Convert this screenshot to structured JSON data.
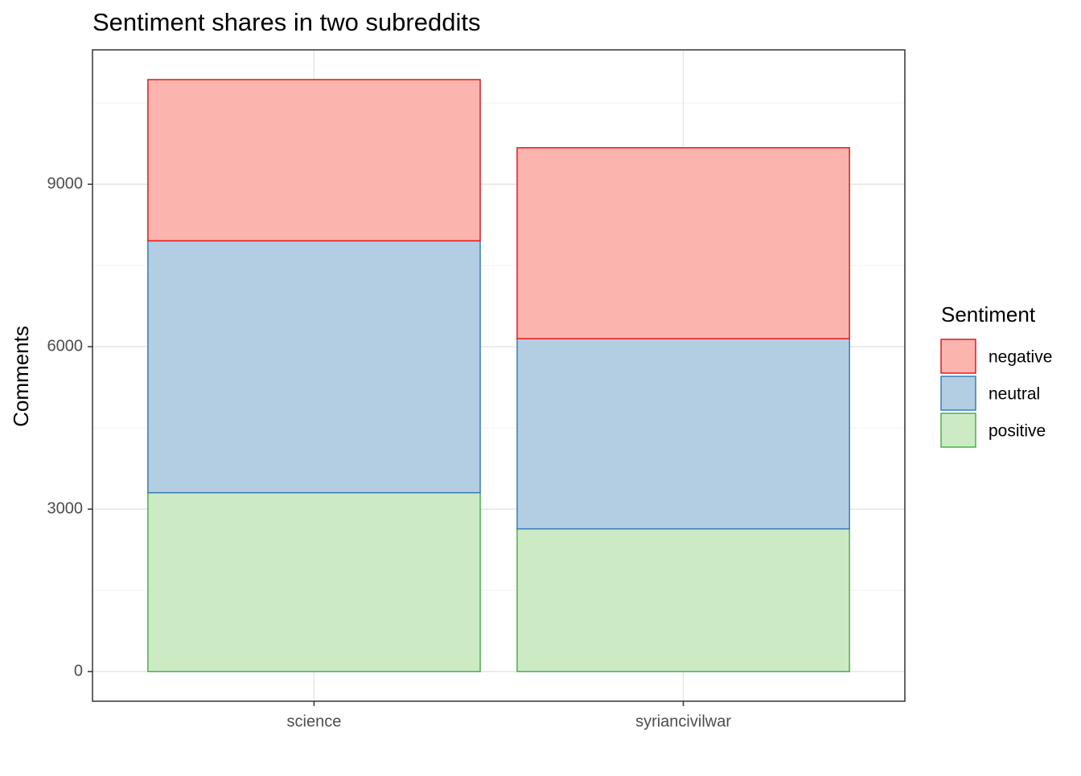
{
  "chart_data": {
    "type": "stacked_bar",
    "title": "Sentiment shares in two subreddits",
    "y_label": "Comments",
    "legend_title": "Sentiment",
    "categories": [
      "science",
      "syriancivilwar"
    ],
    "series": [
      {
        "name": "negative",
        "color": "#FBB4AE",
        "stroke": "#E41A1C",
        "values": [
          2977,
          3526
        ]
      },
      {
        "name": "neutral",
        "color": "#B3CDE3",
        "stroke": "#377EB8",
        "values": [
          4652,
          3511
        ]
      },
      {
        "name": "positive",
        "color": "#CCEBC5",
        "stroke": "#4DAF4A",
        "values": [
          3304,
          2637
        ]
      }
    ],
    "ylim": [
      -547,
      11482
    ],
    "yticks": [
      0,
      3000,
      6000,
      9000
    ],
    "minor_yticks": [
      1500,
      4500,
      7500,
      10500
    ],
    "grid": true,
    "legend": "right"
  }
}
